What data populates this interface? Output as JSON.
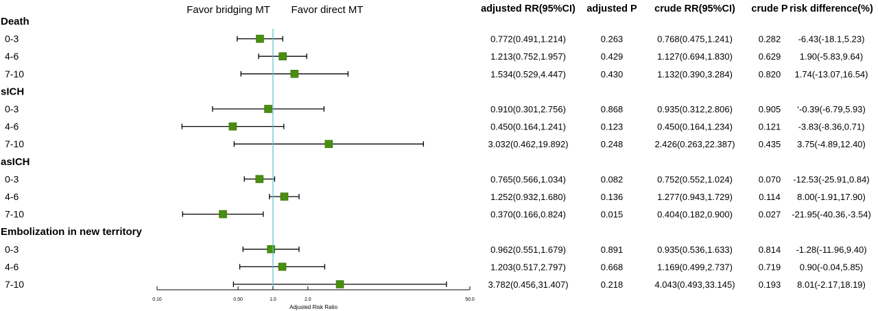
{
  "chart_data": {
    "type": "forest",
    "xlabel": "Adjusted Risk Ratio",
    "x_scale": "log",
    "xlim": [
      0.1,
      50.0
    ],
    "x_ticks": [
      "0.10",
      "0.50",
      "1.0",
      "2.0",
      "50.0"
    ],
    "reference_line": 1.0,
    "favor_left": "Favor bridging MT",
    "favor_right": "Favor direct MT",
    "columns": [
      "adjusted RR(95%CI)",
      "adjusted P",
      "crude RR(95%CI)",
      "crude P",
      "risk difference(%)"
    ],
    "groups": [
      {
        "name": "Death",
        "rows": [
          {
            "label": "0-3",
            "rr": 0.772,
            "lo": 0.491,
            "hi": 1.214,
            "adj_rr": "0.772(0.491,1.214)",
            "adj_p": "0.263",
            "crude_rr": "0.768(0.475,1.241)",
            "crude_p": "0.282",
            "rd": "-6.43(-18.1,5.23)"
          },
          {
            "label": "4-6",
            "rr": 1.213,
            "lo": 0.752,
            "hi": 1.957,
            "adj_rr": "1.213(0.752,1.957)",
            "adj_p": "0.429",
            "crude_rr": "1.127(0.694,1.830)",
            "crude_p": "0.629",
            "rd": "1.90(-5.83,9.64)"
          },
          {
            "label": "7-10",
            "rr": 1.534,
            "lo": 0.529,
            "hi": 4.447,
            "adj_rr": "1.534(0.529,4.447)",
            "adj_p": "0.430",
            "crude_rr": "1.132(0.390,3.284)",
            "crude_p": "0.820",
            "rd": "1.74(-13.07,16.54)"
          }
        ]
      },
      {
        "name": "sICH",
        "rows": [
          {
            "label": "0-3",
            "rr": 0.91,
            "lo": 0.301,
            "hi": 2.756,
            "adj_rr": "0.910(0.301,2.756)",
            "adj_p": "0.868",
            "crude_rr": "0.935(0.312,2.806)",
            "crude_p": "0.905",
            "rd": "‘-0.39(-6.79,5.93)"
          },
          {
            "label": "4-6",
            "rr": 0.45,
            "lo": 0.164,
            "hi": 1.241,
            "adj_rr": "0.450(0.164,1.241)",
            "adj_p": "0.123",
            "crude_rr": "0.450(0.164,1.234)",
            "crude_p": "0.121",
            "rd": "-3.83(-8.36,0.71)"
          },
          {
            "label": "7-10",
            "rr": 3.032,
            "lo": 0.462,
            "hi": 19.892,
            "adj_rr": "3.032(0.462,19.892)",
            "adj_p": "0.248",
            "crude_rr": "2.426(0.263,22.387)",
            "crude_p": "0.435",
            "rd": "3.75(-4.89,12.40)"
          }
        ]
      },
      {
        "name": "asICH",
        "rows": [
          {
            "label": "0-3",
            "rr": 0.765,
            "lo": 0.566,
            "hi": 1.034,
            "adj_rr": "0.765(0.566,1.034)",
            "adj_p": "0.082",
            "crude_rr": "0.752(0.552,1.024)",
            "crude_p": "0.070",
            "rd": "-12.53(-25.91,0.84)"
          },
          {
            "label": "4-6",
            "rr": 1.252,
            "lo": 0.932,
            "hi": 1.68,
            "adj_rr": "1.252(0.932,1.680)",
            "adj_p": "0.136",
            "crude_rr": "1.277(0.943,1.729)",
            "crude_p": "0.114",
            "rd": "8.00(-1.91,17.90)"
          },
          {
            "label": "7-10",
            "rr": 0.37,
            "lo": 0.166,
            "hi": 0.824,
            "adj_rr": "0.370(0.166,0.824)",
            "adj_p": "0.015",
            "crude_rr": "0.404(0.182,0.900)",
            "crude_p": "0.027",
            "rd": "-21.95(-40.36,-3.54)"
          }
        ]
      },
      {
        "name": "Embolization in new territory",
        "rows": [
          {
            "label": "0-3",
            "rr": 0.962,
            "lo": 0.551,
            "hi": 1.679,
            "adj_rr": "0.962(0.551,1.679)",
            "adj_p": "0.891",
            "crude_rr": "0.935(0.536,1.633)",
            "crude_p": "0.814",
            "rd": "-1.28(-11.96,9.40)"
          },
          {
            "label": "4-6",
            "rr": 1.203,
            "lo": 0.517,
            "hi": 2.797,
            "adj_rr": "1.203(0.517,2.797)",
            "adj_p": "0.668",
            "crude_rr": "1.169(0.499,2.737)",
            "crude_p": "0.719",
            "rd": "0.90(-0.04,5.85)"
          },
          {
            "label": "7-10",
            "rr": 3.782,
            "lo": 0.456,
            "hi": 31.407,
            "adj_rr": "3.782(0.456,31.407)",
            "adj_p": "0.218",
            "crude_rr": "4.043(0.493,33.145)",
            "crude_p": "0.193",
            "rd": "8.01(-2.17,18.19)"
          }
        ]
      }
    ],
    "colors": {
      "marker": "#4a8e10",
      "marker_edge": "#2f6a05",
      "reference_line": "#5bbfd0",
      "ci_line": "#000000"
    }
  }
}
